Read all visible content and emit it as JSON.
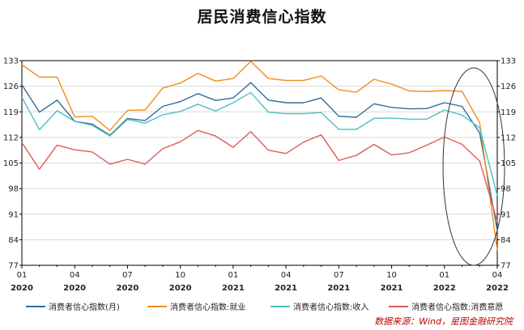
{
  "chart_data": {
    "type": "line",
    "title": "居民消费信心指数",
    "x": [
      "2020-01",
      "2020-02",
      "2020-03",
      "2020-04",
      "2020-05",
      "2020-06",
      "2020-07",
      "2020-08",
      "2020-09",
      "2020-10",
      "2020-11",
      "2020-12",
      "2021-01",
      "2021-02",
      "2021-03",
      "2021-04",
      "2021-05",
      "2021-06",
      "2021-07",
      "2021-08",
      "2021-09",
      "2021-10",
      "2021-11",
      "2021-12",
      "2022-01",
      "2022-02",
      "2022-03",
      "2022-04"
    ],
    "x_tick_labels": [
      {
        "month": "01",
        "year": "2020"
      },
      {
        "month": "04",
        "year": "2020"
      },
      {
        "month": "07",
        "year": "2020"
      },
      {
        "month": "10",
        "year": "2020"
      },
      {
        "month": "01",
        "year": "2021"
      },
      {
        "month": "04",
        "year": "2021"
      },
      {
        "month": "07",
        "year": "2021"
      },
      {
        "month": "10",
        "year": "2021"
      },
      {
        "month": "01",
        "year": "2022"
      },
      {
        "month": "04",
        "year": "2022"
      }
    ],
    "ylim": [
      77,
      133
    ],
    "y_ticks": [
      77,
      84,
      91,
      98,
      105,
      112,
      119,
      126,
      133
    ],
    "grid": true,
    "legend_position": "bottom",
    "annotation": "ellipse highlighting 2022 decline",
    "series": [
      {
        "name": "消费者信心指数(月)",
        "color": "#2e6e9e",
        "values": [
          126.4,
          118.9,
          122.2,
          116.4,
          115.6,
          112.6,
          117.2,
          116.6,
          120.5,
          121.8,
          124.0,
          122.1,
          122.8,
          127.0,
          122.2,
          121.5,
          121.5,
          122.8,
          117.8,
          117.5,
          121.2,
          120.2,
          119.8,
          119.9,
          121.5,
          120.5,
          113.2,
          86.7
        ]
      },
      {
        "name": "消费者信心指数:就业",
        "color": "#f28c1e",
        "values": [
          131.9,
          128.5,
          128.5,
          117.6,
          117.8,
          113.9,
          119.4,
          119.5,
          125.5,
          126.9,
          129.5,
          127.4,
          128.1,
          132.8,
          128.1,
          127.6,
          127.6,
          128.8,
          125.0,
          124.4,
          127.9,
          126.6,
          124.7,
          124.6,
          124.8,
          124.6,
          116.0,
          81.1
        ]
      },
      {
        "name": "消费者信心指数:收入",
        "color": "#4ec0c0",
        "values": [
          123.0,
          114.1,
          119.3,
          116.4,
          115.3,
          112.4,
          116.9,
          115.9,
          118.2,
          119.1,
          121.1,
          119.2,
          121.5,
          124.3,
          118.9,
          118.5,
          118.5,
          118.8,
          114.2,
          114.2,
          117.2,
          117.3,
          117.0,
          117.0,
          119.5,
          118.1,
          114.6,
          96.1
        ]
      },
      {
        "name": "消费者信心指数:消费意愿",
        "color": "#e05a5a",
        "values": [
          110.6,
          103.3,
          109.9,
          108.6,
          108.0,
          104.7,
          106.0,
          104.7,
          108.9,
          110.8,
          113.9,
          112.4,
          109.3,
          113.6,
          108.5,
          107.6,
          110.7,
          112.7,
          105.7,
          107.1,
          110.1,
          107.2,
          107.8,
          109.9,
          112.1,
          110.1,
          105.5,
          89.0
        ]
      }
    ],
    "source": "数据来源：Wind，星图金融研究院"
  }
}
